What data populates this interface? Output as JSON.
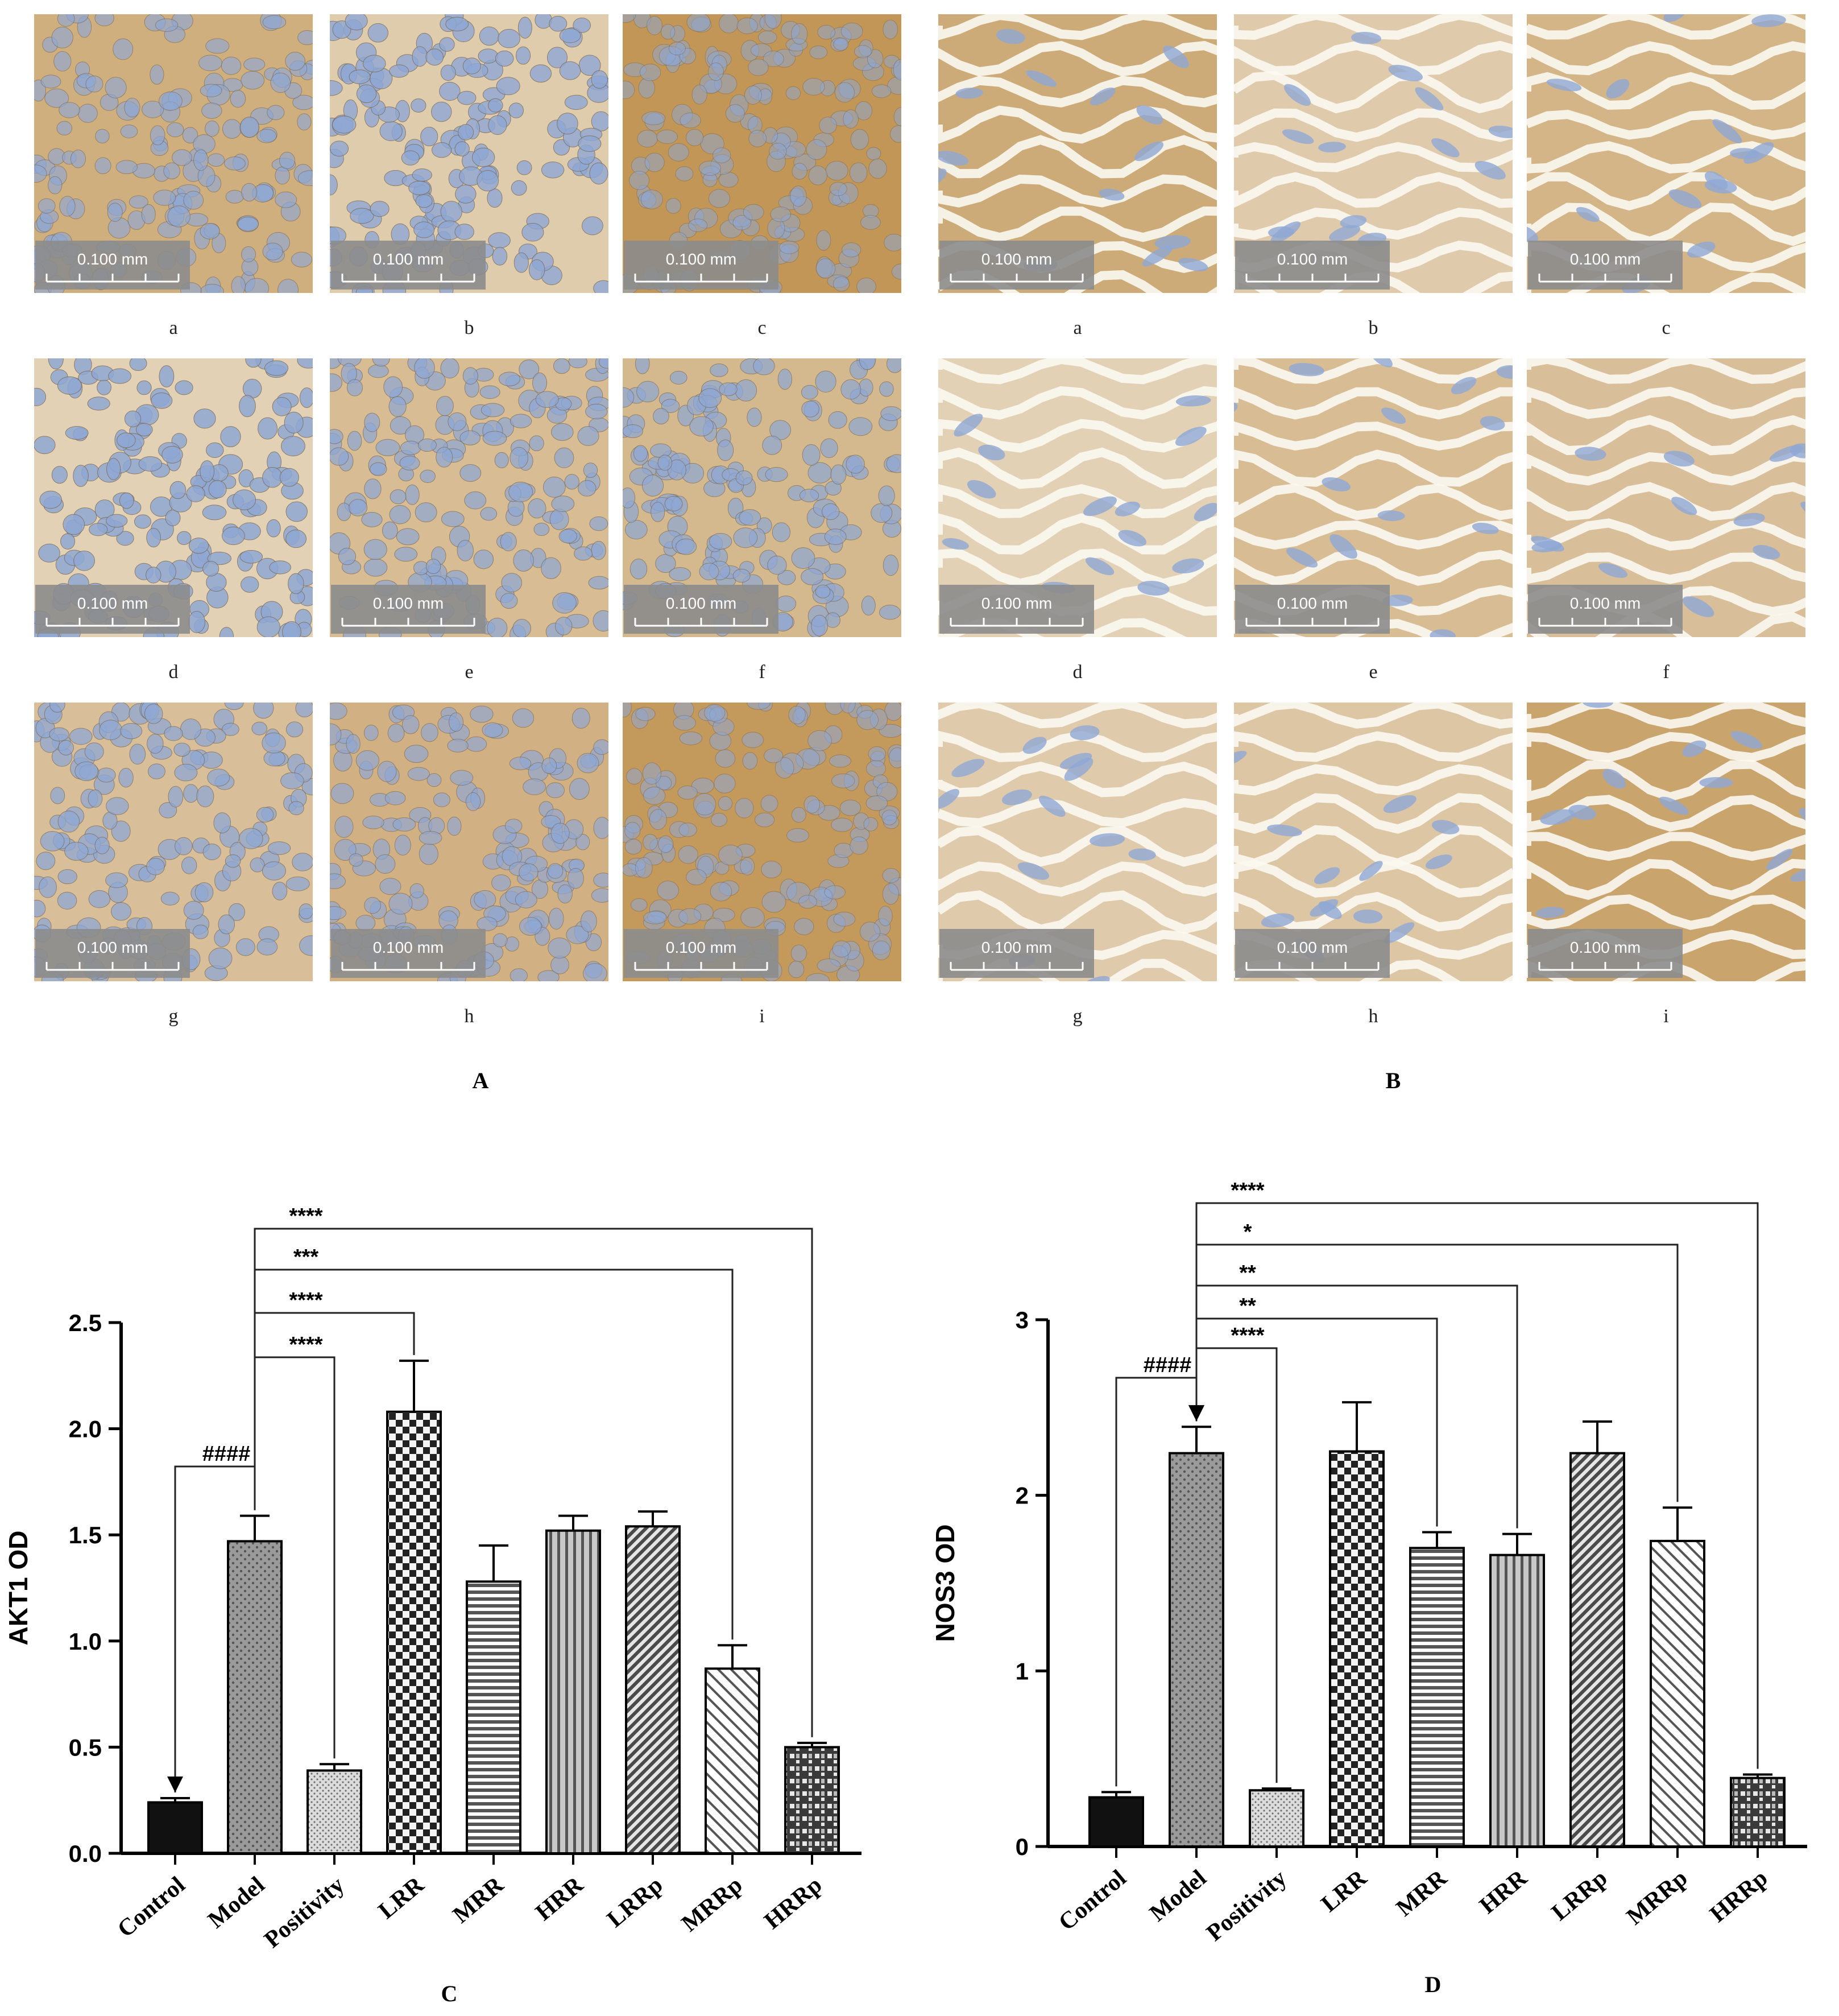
{
  "panels": {
    "A": {
      "label": "A",
      "image_labels": [
        "a",
        "b",
        "c",
        "d",
        "e",
        "f",
        "g",
        "h",
        "i"
      ],
      "scale_bar": "0.100 mm",
      "stain_levels": [
        0.55,
        0.12,
        0.9,
        0.05,
        0.35,
        0.4,
        0.3,
        0.5,
        0.85
      ]
    },
    "B": {
      "label": "B",
      "image_labels": [
        "a",
        "b",
        "c",
        "d",
        "e",
        "f",
        "g",
        "h",
        "i"
      ],
      "scale_bar": "0.100 mm",
      "stain_levels": [
        0.6,
        0.15,
        0.45,
        0.05,
        0.35,
        0.3,
        0.15,
        0.2,
        0.7
      ]
    },
    "C": {
      "label": "C"
    },
    "D": {
      "label": "D"
    }
  },
  "colors": {
    "ihc_nuclei": "#8fa8d4",
    "ihc_background": "#ece3d2",
    "dab_stain": "#b9853c",
    "bar_dark": "#111111"
  },
  "chart_data": [
    {
      "type": "bar",
      "title": "",
      "xlabel": "",
      "ylabel": "AKT1 OD",
      "ylim": [
        0,
        2.5
      ],
      "yticks": [
        "0.0",
        "0.5",
        "1.0",
        "1.5",
        "2.0",
        "2.5"
      ],
      "categories": [
        "Control",
        "Model",
        "Positivity",
        "LRR",
        "MRR",
        "HRR",
        "LRRp",
        "MRRp",
        "HRRp"
      ],
      "values": [
        0.24,
        1.47,
        0.39,
        2.08,
        1.28,
        1.52,
        1.54,
        0.87,
        0.5
      ],
      "errors": [
        0.02,
        0.12,
        0.03,
        0.24,
        0.17,
        0.07,
        0.07,
        0.11,
        0.02
      ],
      "patterns": [
        "solid",
        "dots",
        "fine-dots",
        "checker",
        "hlines",
        "vlines",
        "diag-dense",
        "diag-wide",
        "grid"
      ],
      "comparisons": [
        {
          "from": 0,
          "to": 1,
          "label": "####"
        },
        {
          "from": 1,
          "to": 2,
          "label": "****"
        },
        {
          "from": 1,
          "to": 3,
          "label": "****"
        },
        {
          "from": 1,
          "to": 7,
          "label": "***"
        },
        {
          "from": 1,
          "to": 8,
          "label": "****"
        }
      ]
    },
    {
      "type": "bar",
      "title": "",
      "xlabel": "",
      "ylabel": "NOS3 OD",
      "ylim": [
        0,
        3
      ],
      "yticks": [
        "0",
        "1",
        "2",
        "3"
      ],
      "categories": [
        "Control",
        "Model",
        "Positivity",
        "LRR",
        "MRR",
        "HRR",
        "LRRp",
        "MRRp",
        "HRRp"
      ],
      "values": [
        0.28,
        2.24,
        0.32,
        2.25,
        1.7,
        1.66,
        2.24,
        1.74,
        0.39
      ],
      "errors": [
        0.03,
        0.15,
        0.01,
        0.28,
        0.09,
        0.12,
        0.18,
        0.19,
        0.02
      ],
      "patterns": [
        "solid",
        "dots",
        "fine-dots",
        "checker",
        "hlines",
        "vlines",
        "diag-dense",
        "diag-wide",
        "grid"
      ],
      "comparisons": [
        {
          "from": 1,
          "to": 0,
          "label": "####"
        },
        {
          "from": 1,
          "to": 2,
          "label": "****"
        },
        {
          "from": 1,
          "to": 4,
          "label": "**"
        },
        {
          "from": 1,
          "to": 5,
          "label": "**"
        },
        {
          "from": 1,
          "to": 7,
          "label": "*"
        },
        {
          "from": 1,
          "to": 8,
          "label": "****"
        }
      ]
    }
  ]
}
